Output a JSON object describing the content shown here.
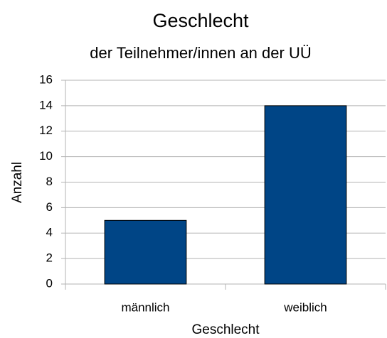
{
  "chart_data": {
    "type": "bar",
    "title": "Geschlecht",
    "subtitle": "der Teilnehmer/innen an der UÜ",
    "x_label": "Geschlecht",
    "y_label": "Anzahl",
    "categories": [
      "männlich",
      "weiblich"
    ],
    "values": [
      5,
      14
    ],
    "color": "#004586",
    "ylim": [
      0,
      16
    ],
    "yticks": [
      0,
      2,
      4,
      6,
      8,
      10,
      12,
      14,
      16
    ],
    "grid": true
  }
}
